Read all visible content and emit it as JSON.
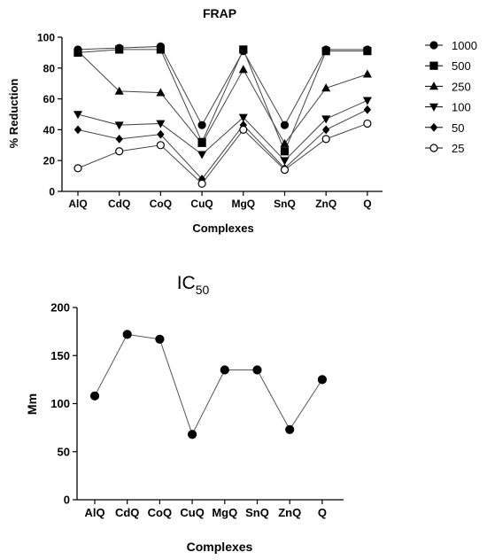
{
  "chart_data": [
    {
      "type": "line",
      "title": "FRAP",
      "xlabel": "Complexes",
      "ylabel": "% Reduction",
      "ylim": [
        0,
        100
      ],
      "yticks": [
        "0",
        "20",
        "40",
        "60",
        "80",
        "100"
      ],
      "categories": [
        "AlQ",
        "CdQ",
        "CoQ",
        "CuQ",
        "MgQ",
        "SnQ",
        "ZnQ",
        "Q"
      ],
      "legend_position": "right",
      "series": [
        {
          "name": "1000",
          "marker": "circle",
          "values": [
            92,
            93,
            94,
            43,
            91,
            43,
            92,
            92
          ]
        },
        {
          "name": "500",
          "marker": "square",
          "values": [
            90,
            92,
            92,
            32,
            92,
            26,
            91,
            91
          ]
        },
        {
          "name": "250",
          "marker": "triangle-up",
          "values": [
            91,
            65,
            64,
            31,
            79,
            31,
            67,
            76
          ]
        },
        {
          "name": "100",
          "marker": "triangle-down",
          "values": [
            50,
            43,
            44,
            24,
            48,
            20,
            47,
            59
          ]
        },
        {
          "name": "50",
          "marker": "diamond",
          "values": [
            40,
            34,
            37,
            8,
            43,
            15,
            40,
            53
          ]
        },
        {
          "name": "25",
          "marker": "open-circle",
          "values": [
            15,
            26,
            30,
            5,
            40,
            14,
            34,
            44
          ]
        }
      ]
    },
    {
      "type": "line",
      "title": "IC",
      "title_subscript": "50",
      "xlabel": "Complexes",
      "ylabel": "Mm",
      "ylim": [
        0,
        200
      ],
      "yticks": [
        "0",
        "50",
        "100",
        "150",
        "200"
      ],
      "categories": [
        "AlQ",
        "CdQ",
        "CoQ",
        "CuQ",
        "MgQ",
        "SnQ",
        "ZnQ",
        "Q"
      ],
      "series": [
        {
          "marker": "circle",
          "values": [
            108,
            172,
            167,
            68,
            135,
            135,
            73,
            125
          ]
        }
      ]
    }
  ]
}
